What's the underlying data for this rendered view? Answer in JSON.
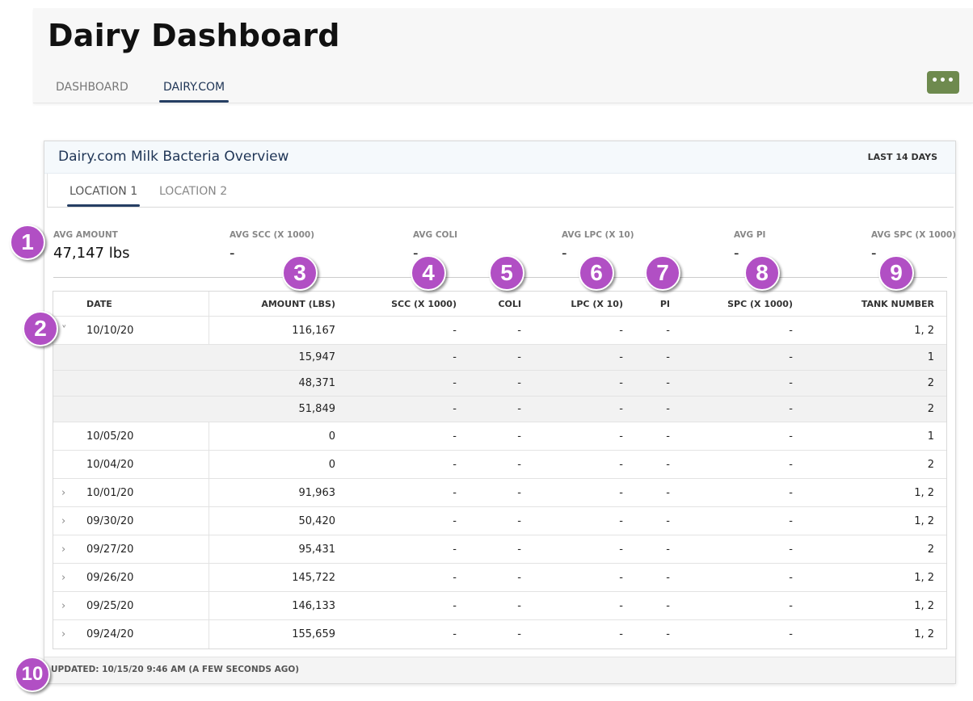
{
  "app": {
    "title": "Dairy Dashboard",
    "nav_tabs": [
      {
        "label": "DASHBOARD",
        "active": false
      },
      {
        "label": "DAIRY.COM",
        "active": true
      }
    ],
    "more_button_label": "•••"
  },
  "card": {
    "title": "Dairy.com Milk Bacteria Overview",
    "range": "LAST 14 DAYS",
    "location_tabs": [
      {
        "label": "LOCATION 1",
        "active": true
      },
      {
        "label": "LOCATION 2",
        "active": false
      }
    ],
    "stats": [
      {
        "label": "AVG AMOUNT",
        "value": "47,147 lbs"
      },
      {
        "label": "AVG SCC (X 1000)",
        "value": "-"
      },
      {
        "label": "AVG COLI",
        "value": "-"
      },
      {
        "label": "AVG LPC (X 10)",
        "value": "-"
      },
      {
        "label": "AVG PI",
        "value": "-"
      },
      {
        "label": "AVG SPC (X 1000)",
        "value": "-"
      }
    ],
    "table": {
      "columns": [
        "DATE",
        "AMOUNT (LBS)",
        "SCC (X 1000)",
        "COLI",
        "LPC (X 10)",
        "PI",
        "SPC (X 1000)",
        "TANK NUMBER"
      ],
      "rows": [
        {
          "chevron": "˅",
          "date": "10/10/20",
          "amount": "116,167",
          "scc": "-",
          "coli": "-",
          "lpc": "-",
          "pi": "-",
          "spc": "-",
          "tank": "1, 2"
        },
        {
          "chevron": "",
          "date": "",
          "amount": "15,947",
          "scc": "-",
          "coli": "-",
          "lpc": "-",
          "pi": "-",
          "spc": "-",
          "tank": "1"
        },
        {
          "chevron": "",
          "date": "",
          "amount": "48,371",
          "scc": "-",
          "coli": "-",
          "lpc": "-",
          "pi": "-",
          "spc": "-",
          "tank": "2"
        },
        {
          "chevron": "",
          "date": "",
          "amount": "51,849",
          "scc": "-",
          "coli": "-",
          "lpc": "-",
          "pi": "-",
          "spc": "-",
          "tank": "2"
        },
        {
          "chevron": "",
          "date": "10/05/20",
          "amount": "0",
          "scc": "-",
          "coli": "-",
          "lpc": "-",
          "pi": "-",
          "spc": "-",
          "tank": "1"
        },
        {
          "chevron": "",
          "date": "10/04/20",
          "amount": "0",
          "scc": "-",
          "coli": "-",
          "lpc": "-",
          "pi": "-",
          "spc": "-",
          "tank": "2"
        },
        {
          "chevron": "›",
          "date": "10/01/20",
          "amount": "91,963",
          "scc": "-",
          "coli": "-",
          "lpc": "-",
          "pi": "-",
          "spc": "-",
          "tank": "1, 2"
        },
        {
          "chevron": "›",
          "date": "09/30/20",
          "amount": "50,420",
          "scc": "-",
          "coli": "-",
          "lpc": "-",
          "pi": "-",
          "spc": "-",
          "tank": "1, 2"
        },
        {
          "chevron": "›",
          "date": "09/27/20",
          "amount": "95,431",
          "scc": "-",
          "coli": "-",
          "lpc": "-",
          "pi": "-",
          "spc": "-",
          "tank": "2"
        },
        {
          "chevron": "›",
          "date": "09/26/20",
          "amount": "145,722",
          "scc": "-",
          "coli": "-",
          "lpc": "-",
          "pi": "-",
          "spc": "-",
          "tank": "1, 2"
        },
        {
          "chevron": "›",
          "date": "09/25/20",
          "amount": "146,133",
          "scc": "-",
          "coli": "-",
          "lpc": "-",
          "pi": "-",
          "spc": "-",
          "tank": "1, 2"
        },
        {
          "chevron": "›",
          "date": "09/24/20",
          "amount": "155,659",
          "scc": "-",
          "coli": "-",
          "lpc": "-",
          "pi": "-",
          "spc": "-",
          "tank": "1, 2"
        }
      ]
    },
    "updated": "UPDATED: 10/15/20 9:46 AM (A FEW SECONDS AGO)"
  },
  "callouts": [
    "1",
    "2",
    "3",
    "4",
    "5",
    "6",
    "7",
    "8",
    "9",
    "10"
  ],
  "colors": {
    "accent_navy": "#253e63",
    "more_button": "#6e8a4e",
    "callout": "#b14fc4"
  }
}
